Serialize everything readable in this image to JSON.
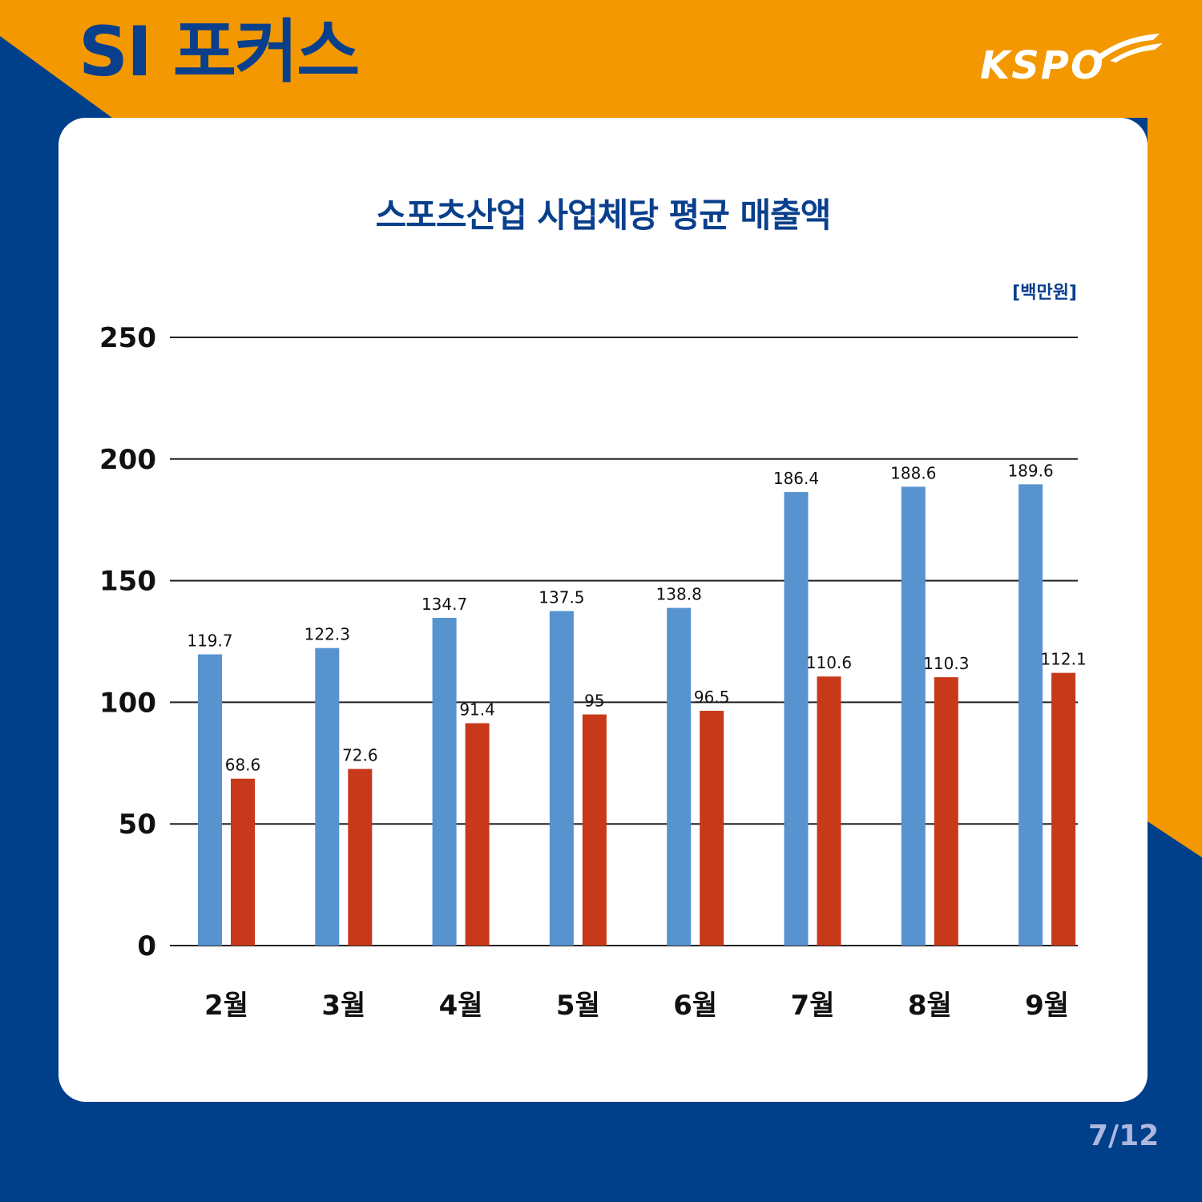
{
  "header": {
    "title": "SI 포커스"
  },
  "logo": {
    "text": "KSPO"
  },
  "colors": {
    "orange": "#f39800",
    "navy": "#003f8a",
    "title_blue": "#0a3f8c",
    "series_blue": "#5693cf",
    "series_red": "#c7391a",
    "page_num": "#aeb8de"
  },
  "page": {
    "number": "7/12"
  },
  "chart_data": {
    "type": "bar",
    "title": "스포츠산업 사업체당 평균 매출액",
    "unit": "[백만원]",
    "categories": [
      "2월",
      "3월",
      "4월",
      "5월",
      "6월",
      "7월",
      "8월",
      "9월"
    ],
    "series": [
      {
        "values": [
          119.7,
          122.3,
          134.7,
          137.5,
          138.8,
          186.4,
          188.6,
          189.6
        ],
        "color": "#5693cf"
      },
      {
        "values": [
          68.6,
          72.6,
          91.4,
          95,
          96.5,
          110.6,
          110.3,
          112.1
        ],
        "color": "#c7391a"
      }
    ],
    "ylim": [
      0,
      250
    ],
    "yticks": [
      0,
      50,
      100,
      150,
      200,
      250
    ],
    "ytick_labels": [
      "0",
      "50",
      "100",
      "150",
      "200",
      "250"
    ],
    "grid": true,
    "legend": "none"
  }
}
